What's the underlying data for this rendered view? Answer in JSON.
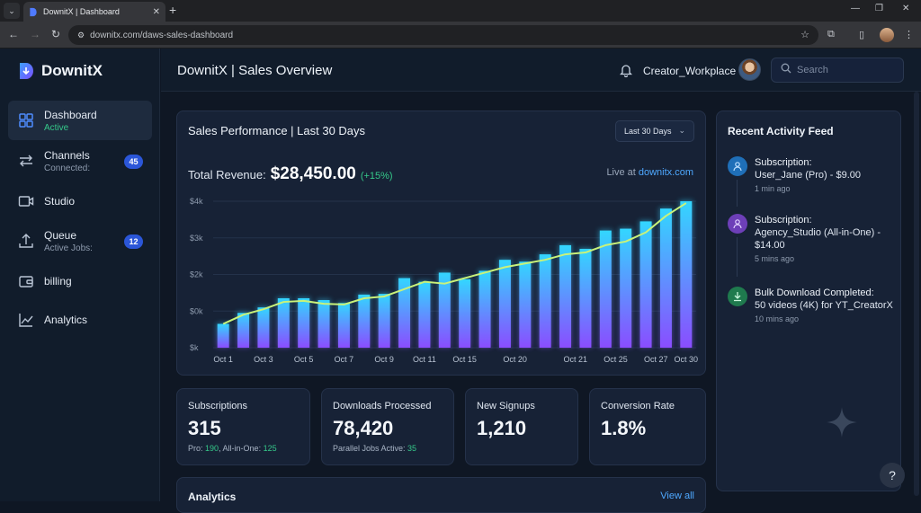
{
  "browser": {
    "tab_title": "DownitX | Dashboard",
    "url": "downitx.com/daws-sales-dashboard"
  },
  "sidebar": {
    "brand": "DownitX",
    "items": [
      {
        "label": "Dashboard",
        "sub": "Active",
        "icon": "grid-icon"
      },
      {
        "label": "Channels",
        "sub": "Connected:",
        "badge": "45",
        "icon": "arrows-icon"
      },
      {
        "label": "Studio",
        "icon": "video-icon"
      },
      {
        "label": "Queue",
        "sub": "Active Jobs:",
        "badge": "12",
        "icon": "upload-icon"
      },
      {
        "label": "billing",
        "icon": "wallet-icon"
      },
      {
        "label": "Analytics",
        "icon": "chart-line-icon"
      }
    ]
  },
  "header": {
    "title": "DownitX | Sales Overview",
    "user": "Creator_Workplace",
    "search_placeholder": "Search"
  },
  "performance": {
    "title": "Sales Performance | Last 30 Days",
    "range_select": "Last 30 Days",
    "revenue_label": "Total Revenue:",
    "revenue_value": "$28,450.00",
    "revenue_change": "(+15%)",
    "live_label": "Live at",
    "live_link": "downitx.com"
  },
  "chart_data": {
    "type": "bar",
    "y_tick_labels": [
      "$k",
      "$0k",
      "$2k",
      "$3k",
      "$4k"
    ],
    "x_tick_labels": [
      "Oct 1",
      "Oct 3",
      "Oct 5",
      "Oct 7",
      "Oct 9",
      "Oct 11",
      "Oct 15",
      "Oct 20",
      "Oct 21",
      "Oct 25",
      "Oct 27",
      "Oct 30"
    ],
    "ylim": [
      0,
      4
    ],
    "values": [
      0.65,
      0.95,
      1.1,
      1.35,
      1.35,
      1.3,
      1.22,
      1.45,
      1.47,
      1.9,
      1.8,
      2.05,
      1.87,
      2.1,
      2.4,
      2.35,
      2.55,
      2.8,
      2.7,
      3.2,
      3.25,
      3.45,
      3.8,
      4.0
    ],
    "trend": [
      0.65,
      0.9,
      1.05,
      1.25,
      1.28,
      1.2,
      1.18,
      1.35,
      1.4,
      1.6,
      1.8,
      1.75,
      1.9,
      2.05,
      2.2,
      2.3,
      2.4,
      2.55,
      2.6,
      2.8,
      2.9,
      3.15,
      3.6,
      3.95
    ],
    "grid": true,
    "bar_gradient": [
      "#33d6ff",
      "#8a4dff"
    ],
    "trend_color": "#c9f27a"
  },
  "stats": [
    {
      "label": "Subscriptions",
      "value": "315",
      "sub_a": "Pro: ",
      "sub_a_val": "190",
      "sub_b": ", All-in-One: ",
      "sub_b_val": "125"
    },
    {
      "label": "Downloads Processed",
      "value": "78,420",
      "sub_a": "Parallel Jobs Active: ",
      "sub_a_val": "35"
    },
    {
      "label": "New Signups",
      "value": "1,210"
    },
    {
      "label": "Conversion Rate",
      "value": "1.8%"
    }
  ],
  "analytics": {
    "title": "Analytics",
    "view_all": "View all"
  },
  "feed": {
    "title": "Recent Activity Feed",
    "items": [
      {
        "title": "Subscription:",
        "detail": "User_Jane (Pro) - $9.00",
        "time": "1 min ago",
        "icon": "user-icon",
        "color": "#1f6fb8"
      },
      {
        "title": "Subscription:",
        "detail": "Agency_Studio (All-in-One) - $14.00",
        "time": "5 mins ago",
        "icon": "user-icon",
        "color": "#6d3fb8"
      },
      {
        "title": "Bulk Download Completed:",
        "detail": "50 videos (4K) for YT_CreatorX",
        "time": "10 mins ago",
        "icon": "download-icon",
        "color": "#1f7a4e"
      }
    ]
  }
}
